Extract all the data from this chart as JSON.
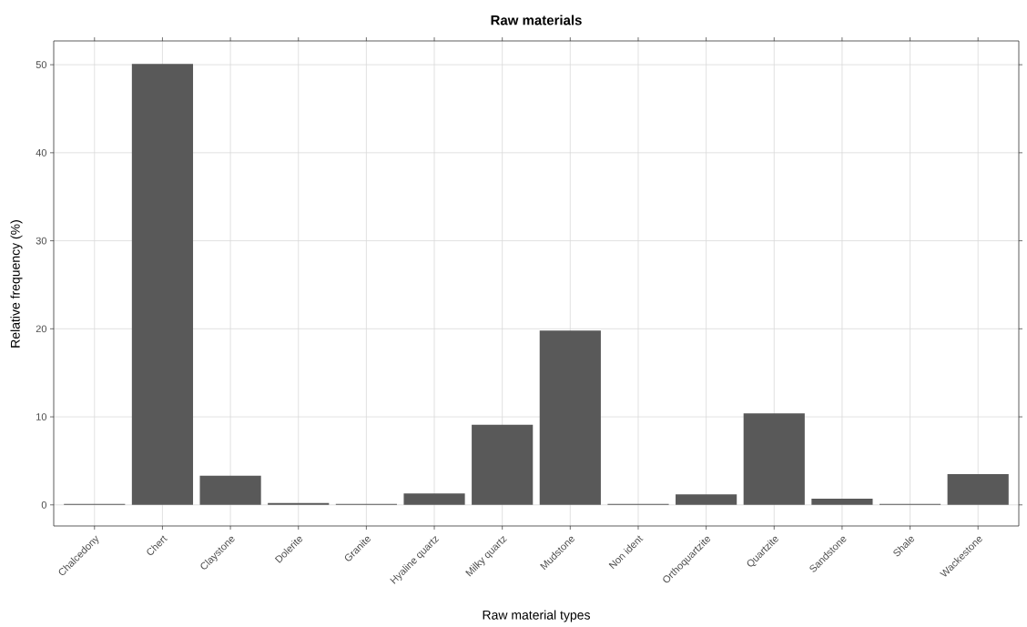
{
  "chart_data": {
    "type": "bar",
    "title": "Raw materials",
    "xlabel": "Raw material types",
    "ylabel": "Relative frequency (%)",
    "categories": [
      "Chalcedony",
      "Chert",
      "Claystone",
      "Dolerite",
      "Granite",
      "Hyaline quartz",
      "Milky quartz",
      "Mudstone",
      "Non ident",
      "Orthoquartzite",
      "Quartzite",
      "Sandstone",
      "Shale",
      "Wackestone"
    ],
    "values": [
      0.1,
      50.1,
      3.3,
      0.2,
      0.1,
      1.3,
      9.1,
      19.8,
      0.1,
      1.2,
      10.4,
      0.7,
      0.1,
      3.5
    ],
    "color": "#595959",
    "ylim": [
      -2.4,
      52.7
    ],
    "yticks": [
      0,
      10,
      20,
      30,
      40,
      50
    ],
    "grid": true
  }
}
